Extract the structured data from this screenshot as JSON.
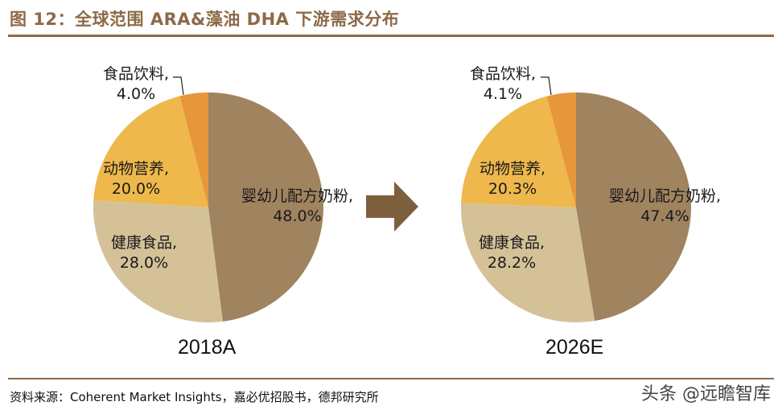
{
  "title": "图 12：全球范围 ARA&藻油 DHA 下游需求分布",
  "source": "资料来源：Coherent Market Insights，嘉必优招股书，德邦研究所",
  "watermark": "头条 @远瞻智库",
  "colors": {
    "infant": "#a0835f",
    "health": "#d4c198",
    "animal": "#eeb84c",
    "food": "#e8963a",
    "accent": "#8c6a48",
    "arrow": "#7d5f3e"
  },
  "chart_data": [
    {
      "type": "pie",
      "title": "2018A",
      "labels": [
        "婴幼儿配方奶粉,",
        "健康食品,",
        "动物营养,",
        "食品饮料,"
      ],
      "values": [
        48.0,
        28.0,
        20.0,
        4.0
      ],
      "value_labels": [
        "48.0%",
        "28.0%",
        "20.0%",
        "4.0%"
      ]
    },
    {
      "type": "pie",
      "title": "2026E",
      "labels": [
        "婴幼儿配方奶粉,",
        "健康食品,",
        "动物营养,",
        "食品饮料,"
      ],
      "values": [
        47.4,
        28.2,
        20.3,
        4.1
      ],
      "value_labels": [
        "47.4%",
        "28.2%",
        "20.3%",
        "4.1%"
      ]
    }
  ]
}
